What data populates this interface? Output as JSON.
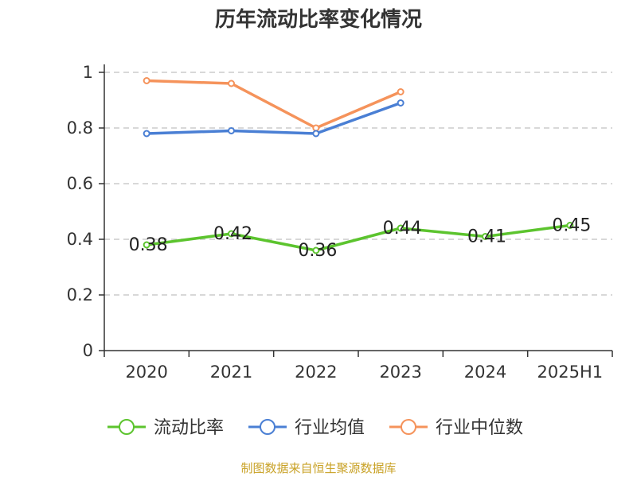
{
  "chart_data": {
    "type": "line",
    "title": "历年流动比率变化情况",
    "categories": [
      "2020",
      "2021",
      "2022",
      "2023",
      "2024",
      "2025H1"
    ],
    "ylim": [
      0,
      1
    ],
    "yticks": [
      "0",
      "0.2",
      "0.4",
      "0.6",
      "0.8",
      "1"
    ],
    "grid": true,
    "legend_position": "bottom",
    "series": [
      {
        "name": "流动比率",
        "color": "#5cc42e",
        "values": [
          0.38,
          0.42,
          0.36,
          0.44,
          0.41,
          0.45
        ],
        "labels": [
          "0.38",
          "0.42",
          "0.36",
          "0.44",
          "0.41",
          "0.45"
        ]
      },
      {
        "name": "行业均值",
        "color": "#4a7fd4",
        "values": [
          0.78,
          0.79,
          0.78,
          0.89,
          null,
          null
        ]
      },
      {
        "name": "行业中位数",
        "color": "#f5935b",
        "values": [
          0.97,
          0.96,
          0.8,
          0.93,
          null,
          null
        ]
      }
    ]
  },
  "footer": {
    "source": "制图数据来自恒生聚源数据库"
  }
}
